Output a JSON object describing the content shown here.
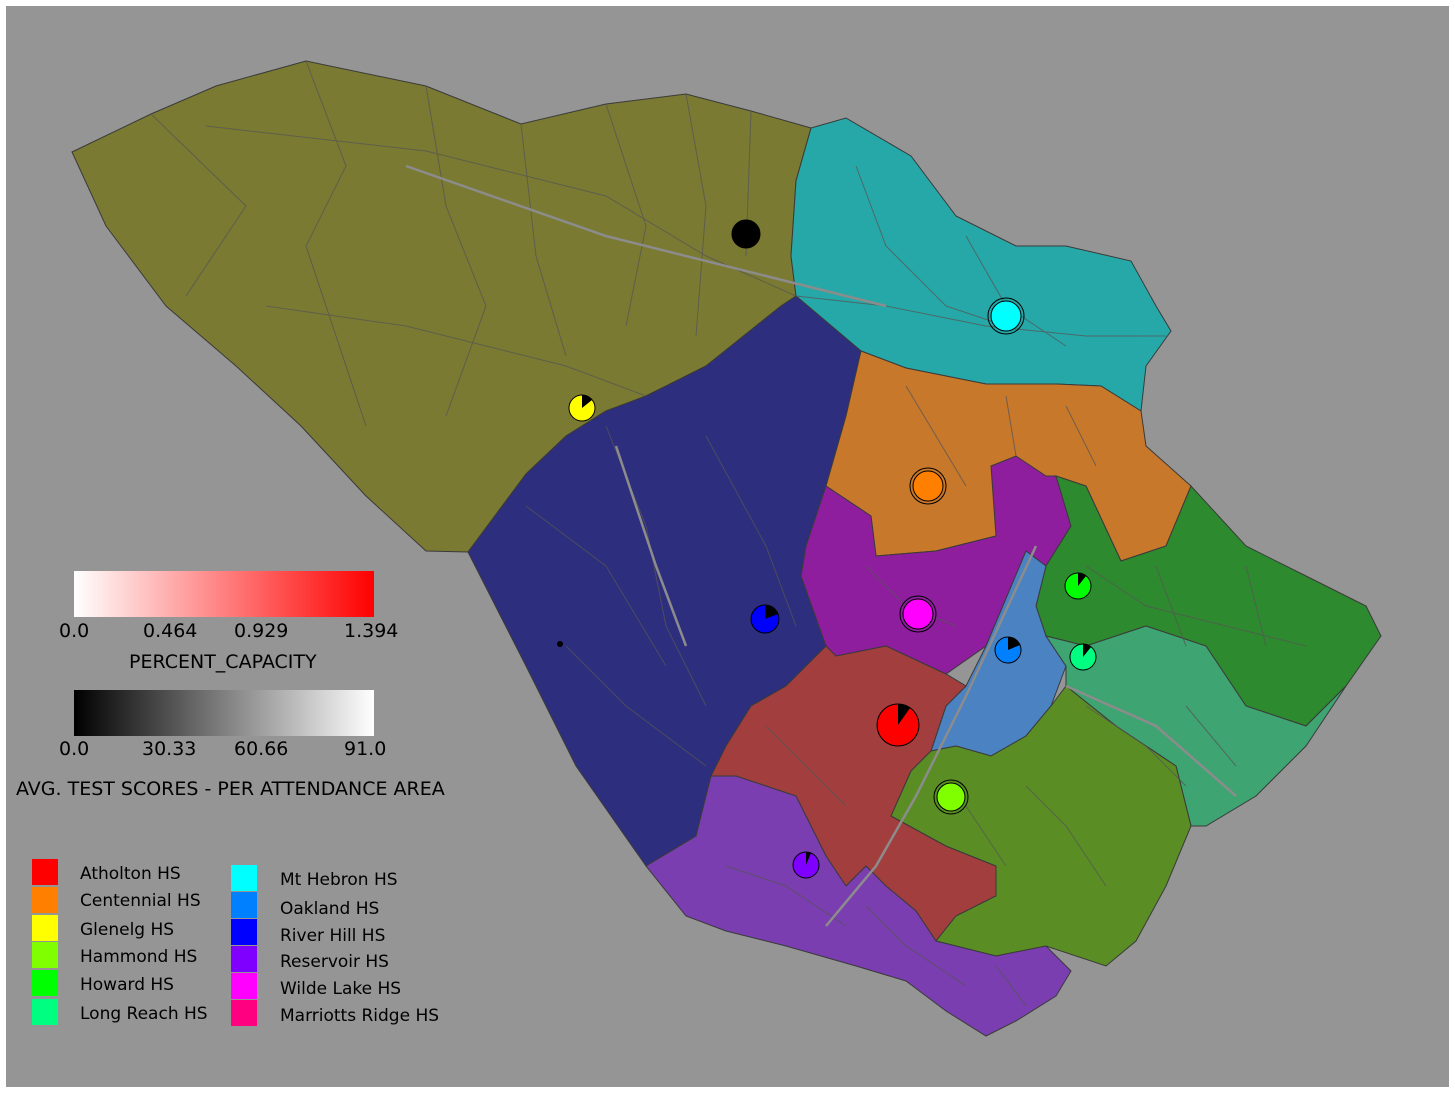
{
  "capacity_legend": {
    "title": "PERCENT_CAPACITY",
    "ticks": [
      "0.0",
      "0.464",
      "0.929",
      "1.394"
    ],
    "color_start": "#ffffff",
    "color_end": "#ff0000"
  },
  "scores_legend": {
    "title": "AVG. TEST SCORES - PER ATTENDANCE AREA",
    "ticks": [
      "0.0",
      "30.33",
      "60.66",
      "91.0"
    ],
    "color_start": "#000000",
    "color_end": "#ffffff"
  },
  "schools": [
    {
      "name": "Atholton HS",
      "color": "#ff0000"
    },
    {
      "name": "Centennial HS",
      "color": "#ff7f00"
    },
    {
      "name": "Glenelg HS",
      "color": "#ffff00"
    },
    {
      "name": "Hammond HS",
      "color": "#80ff00"
    },
    {
      "name": "Howard HS",
      "color": "#00ff00"
    },
    {
      "name": "Long Reach HS",
      "color": "#00ff80"
    },
    {
      "name": "Mt Hebron HS",
      "color": "#00ffff"
    },
    {
      "name": "Oakland HS",
      "color": "#0080ff"
    },
    {
      "name": "River Hill HS",
      "color": "#0000ff"
    },
    {
      "name": "Reservoir HS",
      "color": "#8000ff"
    },
    {
      "name": "Wilde Lake HS",
      "color": "#ff00ff"
    },
    {
      "name": "Marriotts Ridge HS",
      "color": "#ff0080"
    }
  ],
  "region_colors": {
    "background": "#959595",
    "marriotts_ridge": "#7a7a32",
    "mt_hebron": "#26a8a8",
    "centennial": "#c8782a",
    "glenelg_river_hill": "#2e2e7e",
    "wilde_lake": "#8e1e9e",
    "howard": "#2e8a2e",
    "oakland": "#4a82c2",
    "long_reach": "#3ea472",
    "atholton": "#a23e3e",
    "hammond": "#5a8e24",
    "reservoir": "#7a3eb0"
  }
}
